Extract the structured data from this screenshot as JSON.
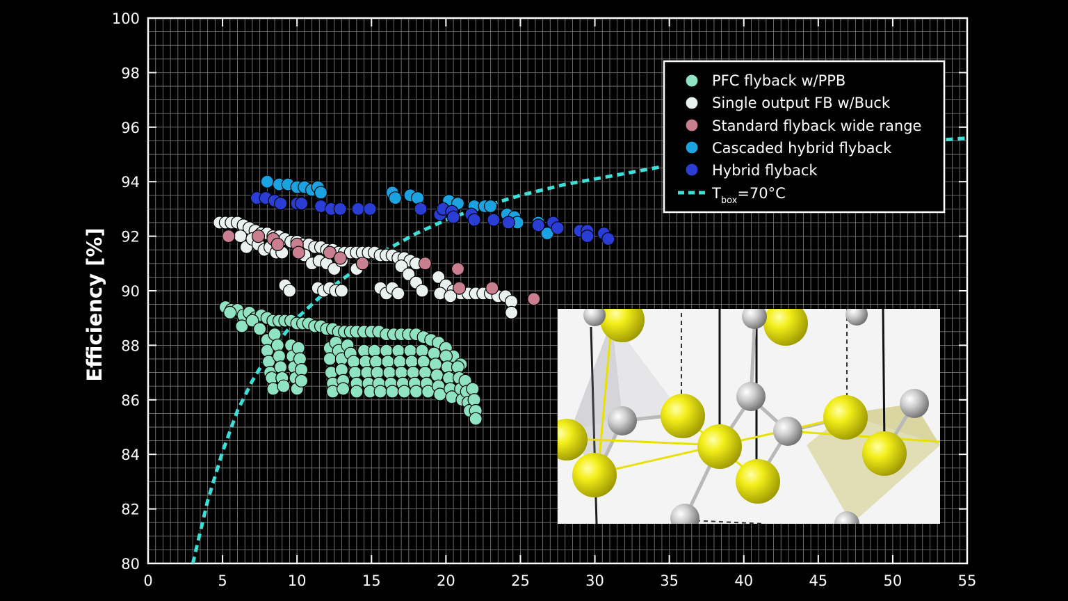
{
  "chart_data": {
    "type": "scatter",
    "title": "",
    "xlabel": "",
    "ylabel": "Efficiency [%]",
    "xlim": [
      0,
      55
    ],
    "ylim": [
      80,
      100
    ],
    "x_ticks": [
      "0",
      "5",
      "10",
      "15",
      "20",
      "25",
      "30",
      "35",
      "40",
      "45",
      "50",
      "55"
    ],
    "y_ticks": [
      "80",
      "82",
      "84",
      "86",
      "88",
      "90",
      "92",
      "94",
      "96",
      "98",
      "100"
    ],
    "grid": true,
    "legend_position": "top-right",
    "series": [
      {
        "name": "PFC flyback w/PPB",
        "color": "#8fe3c2",
        "points": [
          [
            5.2,
            89.4
          ],
          [
            5.6,
            89.3
          ],
          [
            6.0,
            89.3
          ],
          [
            6.4,
            89.1
          ],
          [
            6.8,
            89.2
          ],
          [
            7.2,
            89.0
          ],
          [
            7.6,
            89.1
          ],
          [
            8.0,
            89.0
          ],
          [
            8.4,
            88.9
          ],
          [
            8.8,
            88.9
          ],
          [
            9.2,
            88.9
          ],
          [
            9.6,
            88.9
          ],
          [
            10.0,
            88.8
          ],
          [
            10.4,
            88.8
          ],
          [
            10.8,
            88.8
          ],
          [
            11.2,
            88.7
          ],
          [
            11.6,
            88.7
          ],
          [
            12.0,
            88.6
          ],
          [
            12.4,
            88.6
          ],
          [
            12.8,
            88.5
          ],
          [
            13.2,
            88.5
          ],
          [
            13.6,
            88.5
          ],
          [
            14.0,
            88.5
          ],
          [
            14.5,
            88.5
          ],
          [
            15.0,
            88.5
          ],
          [
            15.5,
            88.5
          ],
          [
            16.0,
            88.4
          ],
          [
            16.5,
            88.4
          ],
          [
            17.0,
            88.4
          ],
          [
            17.5,
            88.4
          ],
          [
            18.0,
            88.4
          ],
          [
            18.5,
            88.3
          ],
          [
            19.0,
            88.2
          ],
          [
            19.5,
            88.1
          ],
          [
            20.0,
            87.9
          ],
          [
            20.5,
            87.6
          ],
          [
            21.0,
            87.3
          ],
          [
            5.5,
            89.2
          ],
          [
            6.3,
            88.7
          ],
          [
            7.0,
            88.9
          ],
          [
            7.5,
            88.6
          ],
          [
            8.0,
            88.2
          ],
          [
            8.5,
            88.4
          ],
          [
            8.0,
            87.8
          ],
          [
            8.1,
            87.4
          ],
          [
            8.2,
            87.0
          ],
          [
            8.3,
            86.8
          ],
          [
            8.4,
            86.4
          ],
          [
            8.7,
            88.0
          ],
          [
            8.8,
            87.6
          ],
          [
            8.9,
            87.2
          ],
          [
            9.0,
            86.8
          ],
          [
            9.1,
            86.5
          ],
          [
            9.6,
            88.0
          ],
          [
            9.7,
            87.6
          ],
          [
            9.8,
            87.2
          ],
          [
            9.9,
            86.8
          ],
          [
            10.0,
            86.4
          ],
          [
            10.1,
            87.9
          ],
          [
            10.2,
            87.5
          ],
          [
            10.3,
            87.1
          ],
          [
            10.3,
            86.7
          ],
          [
            12.2,
            87.9
          ],
          [
            12.2,
            87.5
          ],
          [
            12.3,
            87.0
          ],
          [
            12.4,
            86.6
          ],
          [
            12.4,
            86.3
          ],
          [
            12.6,
            88.1
          ],
          [
            12.8,
            87.8
          ],
          [
            13.0,
            87.5
          ],
          [
            13.0,
            87.1
          ],
          [
            13.1,
            86.7
          ],
          [
            13.1,
            86.4
          ],
          [
            13.4,
            88.0
          ],
          [
            13.6,
            87.7
          ],
          [
            13.8,
            87.4
          ],
          [
            13.9,
            87.0
          ],
          [
            14.0,
            86.6
          ],
          [
            14.0,
            86.3
          ],
          [
            14.5,
            87.8
          ],
          [
            14.6,
            87.4
          ],
          [
            14.7,
            87.0
          ],
          [
            14.8,
            86.6
          ],
          [
            14.9,
            86.3
          ],
          [
            15.2,
            87.8
          ],
          [
            15.3,
            87.4
          ],
          [
            15.4,
            87.0
          ],
          [
            15.5,
            86.6
          ],
          [
            15.6,
            86.3
          ],
          [
            16.0,
            87.8
          ],
          [
            16.1,
            87.4
          ],
          [
            16.2,
            87.0
          ],
          [
            16.3,
            86.6
          ],
          [
            16.4,
            86.3
          ],
          [
            16.8,
            87.8
          ],
          [
            16.9,
            87.4
          ],
          [
            17.0,
            87.0
          ],
          [
            17.1,
            86.6
          ],
          [
            17.2,
            86.3
          ],
          [
            17.6,
            87.8
          ],
          [
            17.7,
            87.4
          ],
          [
            17.8,
            87.0
          ],
          [
            17.9,
            86.6
          ],
          [
            18.0,
            86.3
          ],
          [
            18.4,
            87.8
          ],
          [
            18.5,
            87.4
          ],
          [
            18.6,
            87.0
          ],
          [
            18.7,
            86.6
          ],
          [
            18.8,
            86.3
          ],
          [
            19.2,
            87.7
          ],
          [
            19.3,
            87.3
          ],
          [
            19.4,
            86.9
          ],
          [
            19.5,
            86.5
          ],
          [
            19.6,
            86.2
          ],
          [
            20.0,
            87.6
          ],
          [
            20.1,
            87.2
          ],
          [
            20.2,
            86.8
          ],
          [
            20.3,
            86.4
          ],
          [
            20.4,
            86.1
          ],
          [
            20.8,
            87.2
          ],
          [
            20.9,
            86.8
          ],
          [
            21.0,
            86.4
          ],
          [
            21.1,
            86.0
          ],
          [
            21.3,
            86.7
          ],
          [
            21.4,
            86.3
          ],
          [
            21.5,
            85.9
          ],
          [
            21.6,
            85.6
          ],
          [
            21.8,
            86.4
          ],
          [
            21.9,
            86.0
          ],
          [
            22.0,
            85.6
          ],
          [
            22.0,
            85.3
          ]
        ]
      },
      {
        "name": "Single output FB w/Buck",
        "color": "#eaf2ef",
        "points": [
          [
            4.8,
            92.5
          ],
          [
            5.2,
            92.5
          ],
          [
            5.6,
            92.5
          ],
          [
            6.0,
            92.5
          ],
          [
            6.4,
            92.4
          ],
          [
            6.8,
            92.3
          ],
          [
            7.2,
            92.2
          ],
          [
            7.6,
            92.1
          ],
          [
            8.0,
            92.1
          ],
          [
            8.4,
            92.0
          ],
          [
            8.8,
            92.0
          ],
          [
            9.2,
            91.9
          ],
          [
            9.6,
            91.8
          ],
          [
            10.0,
            91.8
          ],
          [
            10.4,
            91.7
          ],
          [
            10.8,
            91.7
          ],
          [
            11.2,
            91.6
          ],
          [
            11.6,
            91.6
          ],
          [
            12.0,
            91.5
          ],
          [
            12.4,
            91.5
          ],
          [
            12.8,
            91.4
          ],
          [
            13.2,
            91.4
          ],
          [
            13.6,
            91.4
          ],
          [
            14.0,
            91.4
          ],
          [
            14.4,
            91.4
          ],
          [
            14.8,
            91.4
          ],
          [
            15.2,
            91.4
          ],
          [
            15.6,
            91.3
          ],
          [
            16.0,
            91.3
          ],
          [
            16.4,
            91.3
          ],
          [
            16.8,
            91.2
          ],
          [
            17.2,
            91.2
          ],
          [
            17.6,
            91.1
          ],
          [
            18.0,
            91.0
          ],
          [
            6.2,
            92.0
          ],
          [
            6.6,
            91.6
          ],
          [
            7.0,
            91.9
          ],
          [
            7.4,
            91.7
          ],
          [
            7.8,
            91.5
          ],
          [
            8.2,
            91.6
          ],
          [
            8.6,
            91.4
          ],
          [
            9.0,
            91.4
          ],
          [
            10.5,
            91.3
          ],
          [
            11.0,
            91.0
          ],
          [
            11.5,
            91.1
          ],
          [
            12.0,
            91.0
          ],
          [
            12.5,
            90.8
          ],
          [
            13.0,
            91.1
          ],
          [
            14.0,
            90.8
          ],
          [
            17.0,
            90.9
          ],
          [
            17.5,
            90.6
          ],
          [
            18.0,
            90.3
          ],
          [
            18.4,
            90.0
          ],
          [
            19.5,
            90.5
          ],
          [
            20.0,
            90.2
          ],
          [
            20.5,
            90.0
          ],
          [
            21.0,
            89.9
          ],
          [
            21.5,
            89.9
          ],
          [
            22.0,
            89.9
          ],
          [
            22.5,
            89.9
          ],
          [
            23.0,
            89.9
          ],
          [
            23.5,
            89.8
          ],
          [
            24.0,
            89.8
          ],
          [
            24.4,
            89.6
          ],
          [
            24.4,
            89.2
          ],
          [
            9.2,
            90.2
          ],
          [
            9.5,
            90.0
          ],
          [
            11.4,
            90.1
          ],
          [
            11.8,
            90.0
          ],
          [
            12.2,
            90.1
          ],
          [
            12.6,
            90.0
          ],
          [
            13.0,
            90.0
          ],
          [
            15.6,
            90.1
          ],
          [
            16.0,
            89.9
          ],
          [
            16.4,
            90.1
          ],
          [
            16.8,
            89.9
          ],
          [
            19.6,
            89.9
          ],
          [
            20.3,
            89.8
          ]
        ]
      },
      {
        "name": "Standard flyback wide range",
        "color": "#c97f8f",
        "points": [
          [
            5.4,
            92.0
          ],
          [
            7.4,
            92.0
          ],
          [
            8.4,
            91.9
          ],
          [
            8.7,
            91.7
          ],
          [
            10.0,
            91.7
          ],
          [
            10.1,
            91.4
          ],
          [
            12.2,
            91.4
          ],
          [
            12.9,
            91.2
          ],
          [
            14.4,
            91.0
          ],
          [
            18.6,
            91.0
          ],
          [
            20.8,
            90.8
          ],
          [
            20.9,
            90.1
          ],
          [
            23.1,
            90.1
          ],
          [
            25.9,
            89.7
          ]
        ]
      },
      {
        "name": "Cascaded hybrid flyback",
        "color": "#1aa3e0",
        "points": [
          [
            8.0,
            94.0
          ],
          [
            8.8,
            93.9
          ],
          [
            9.4,
            93.9
          ],
          [
            10.0,
            93.8
          ],
          [
            10.5,
            93.8
          ],
          [
            11.0,
            93.7
          ],
          [
            11.4,
            93.8
          ],
          [
            11.6,
            93.6
          ],
          [
            16.4,
            93.6
          ],
          [
            16.6,
            93.4
          ],
          [
            17.6,
            93.5
          ],
          [
            18.1,
            93.4
          ],
          [
            20.2,
            93.3
          ],
          [
            20.8,
            93.2
          ],
          [
            21.9,
            93.1
          ],
          [
            22.6,
            93.1
          ],
          [
            23.0,
            93.1
          ],
          [
            24.1,
            92.8
          ],
          [
            24.6,
            92.7
          ],
          [
            24.8,
            92.5
          ],
          [
            26.2,
            92.5
          ],
          [
            26.8,
            92.1
          ]
        ]
      },
      {
        "name": "Hybrid flyback",
        "color": "#2a3ed6",
        "points": [
          [
            7.3,
            93.4
          ],
          [
            7.9,
            93.4
          ],
          [
            8.5,
            93.3
          ],
          [
            8.9,
            93.2
          ],
          [
            10.0,
            93.2
          ],
          [
            10.3,
            93.2
          ],
          [
            11.6,
            93.1
          ],
          [
            12.3,
            93.0
          ],
          [
            12.9,
            93.0
          ],
          [
            14.1,
            93.0
          ],
          [
            14.9,
            93.0
          ],
          [
            18.3,
            93.0
          ],
          [
            19.6,
            92.8
          ],
          [
            19.8,
            93.0
          ],
          [
            20.4,
            92.9
          ],
          [
            20.5,
            92.7
          ],
          [
            21.7,
            92.8
          ],
          [
            21.9,
            92.6
          ],
          [
            23.2,
            92.6
          ],
          [
            24.2,
            92.5
          ],
          [
            26.2,
            92.4
          ],
          [
            27.2,
            92.5
          ],
          [
            27.5,
            92.3
          ],
          [
            29.0,
            92.2
          ],
          [
            29.5,
            92.2
          ],
          [
            29.5,
            92.0
          ],
          [
            30.6,
            92.1
          ],
          [
            30.9,
            91.9
          ]
        ]
      }
    ],
    "curve": {
      "name": "Tbox=70oC",
      "label_main": "T",
      "label_sub": "box",
      "label_rest": "=70°C",
      "color": "#3de0d8",
      "points": [
        [
          3.0,
          80.0
        ],
        [
          4.0,
          82.3
        ],
        [
          5.0,
          84.1
        ],
        [
          6.0,
          85.6
        ],
        [
          7.0,
          86.7
        ],
        [
          8.0,
          87.6
        ],
        [
          9.0,
          88.3
        ],
        [
          10.0,
          89.0
        ],
        [
          12.0,
          90.0
        ],
        [
          14.0,
          90.8
        ],
        [
          16.0,
          91.5
        ],
        [
          18.0,
          92.1
        ],
        [
          20.0,
          92.6
        ],
        [
          22.0,
          93.0
        ],
        [
          25.0,
          93.5
        ],
        [
          28.0,
          93.9
        ],
        [
          31.0,
          94.2
        ],
        [
          35.0,
          94.6
        ],
        [
          40.0,
          94.9
        ],
        [
          45.0,
          95.2
        ],
        [
          50.0,
          95.4
        ],
        [
          55.0,
          95.6
        ]
      ]
    }
  }
}
